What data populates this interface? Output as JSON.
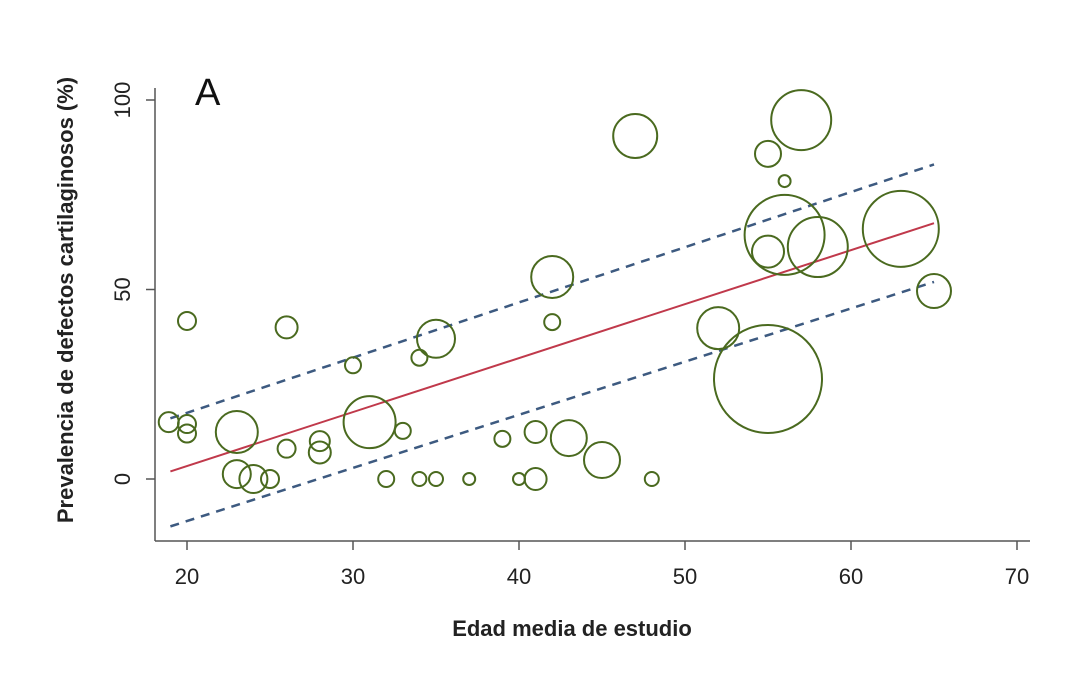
{
  "chart_data": {
    "type": "scatter",
    "subtype": "bubble",
    "panel_label": "A",
    "title": "",
    "xlabel": "Edad media de estudio",
    "ylabel": "Prevalencia de defectos cartilaginosos (%)",
    "xlim": [
      18,
      71
    ],
    "ylim": [
      -17,
      103
    ],
    "xticks": [
      20,
      30,
      40,
      50,
      60,
      70
    ],
    "yticks": [
      0,
      50,
      100
    ],
    "grid": false,
    "legend": null,
    "colors": {
      "bubble": "#4a6a1f",
      "fit": "#c0394b",
      "ci": "#3d5a80",
      "axis": "#555555"
    },
    "points": [
      {
        "x": 18.9,
        "y": 15.0,
        "r": 10
      },
      {
        "x": 20,
        "y": 41.7,
        "r": 9
      },
      {
        "x": 20,
        "y": 14.5,
        "r": 9
      },
      {
        "x": 20,
        "y": 12.0,
        "r": 9
      },
      {
        "x": 23,
        "y": 12.4,
        "r": 21
      },
      {
        "x": 23,
        "y": 1.3,
        "r": 14
      },
      {
        "x": 24,
        "y": 0,
        "r": 14
      },
      {
        "x": 25,
        "y": 0,
        "r": 9
      },
      {
        "x": 26,
        "y": 40.0,
        "r": 11
      },
      {
        "x": 26,
        "y": 8.0,
        "r": 9
      },
      {
        "x": 28,
        "y": 10.0,
        "r": 10
      },
      {
        "x": 28,
        "y": 7.0,
        "r": 11
      },
      {
        "x": 30,
        "y": 30.0,
        "r": 8
      },
      {
        "x": 31,
        "y": 15.0,
        "r": 26
      },
      {
        "x": 32,
        "y": 0,
        "r": 8
      },
      {
        "x": 33,
        "y": 12.7,
        "r": 8
      },
      {
        "x": 34,
        "y": 32.0,
        "r": 8
      },
      {
        "x": 35,
        "y": 37.0,
        "r": 19
      },
      {
        "x": 34,
        "y": 0,
        "r": 7
      },
      {
        "x": 35,
        "y": 0,
        "r": 7
      },
      {
        "x": 37,
        "y": 0,
        "r": 6
      },
      {
        "x": 39,
        "y": 10.6,
        "r": 8
      },
      {
        "x": 40,
        "y": 0,
        "r": 6
      },
      {
        "x": 41,
        "y": 12.4,
        "r": 11
      },
      {
        "x": 41,
        "y": 0,
        "r": 11
      },
      {
        "x": 42,
        "y": 53.3,
        "r": 21
      },
      {
        "x": 42,
        "y": 41.4,
        "r": 8
      },
      {
        "x": 43,
        "y": 10.8,
        "r": 18
      },
      {
        "x": 45,
        "y": 5.0,
        "r": 18
      },
      {
        "x": 47,
        "y": 90.5,
        "r": 22
      },
      {
        "x": 48,
        "y": 0,
        "r": 7
      },
      {
        "x": 52,
        "y": 39.8,
        "r": 21
      },
      {
        "x": 55,
        "y": 85.8,
        "r": 13
      },
      {
        "x": 55,
        "y": 60.0,
        "r": 16
      },
      {
        "x": 55,
        "y": 26.4,
        "r": 54
      },
      {
        "x": 56,
        "y": 78.6,
        "r": 6
      },
      {
        "x": 56,
        "y": 64.4,
        "r": 40
      },
      {
        "x": 58,
        "y": 61.2,
        "r": 30
      },
      {
        "x": 57,
        "y": 94.7,
        "r": 30
      },
      {
        "x": 63,
        "y": 66.0,
        "r": 38
      },
      {
        "x": 65,
        "y": 49.6,
        "r": 17
      }
    ],
    "fit_line": {
      "x": [
        19,
        65
      ],
      "y": [
        2.0,
        67.5
      ]
    },
    "ci_upper": {
      "x": [
        19,
        65
      ],
      "y": [
        16.0,
        83.0
      ]
    },
    "ci_lower": {
      "x": [
        19,
        65
      ],
      "y": [
        -12.5,
        52.0
      ]
    }
  }
}
